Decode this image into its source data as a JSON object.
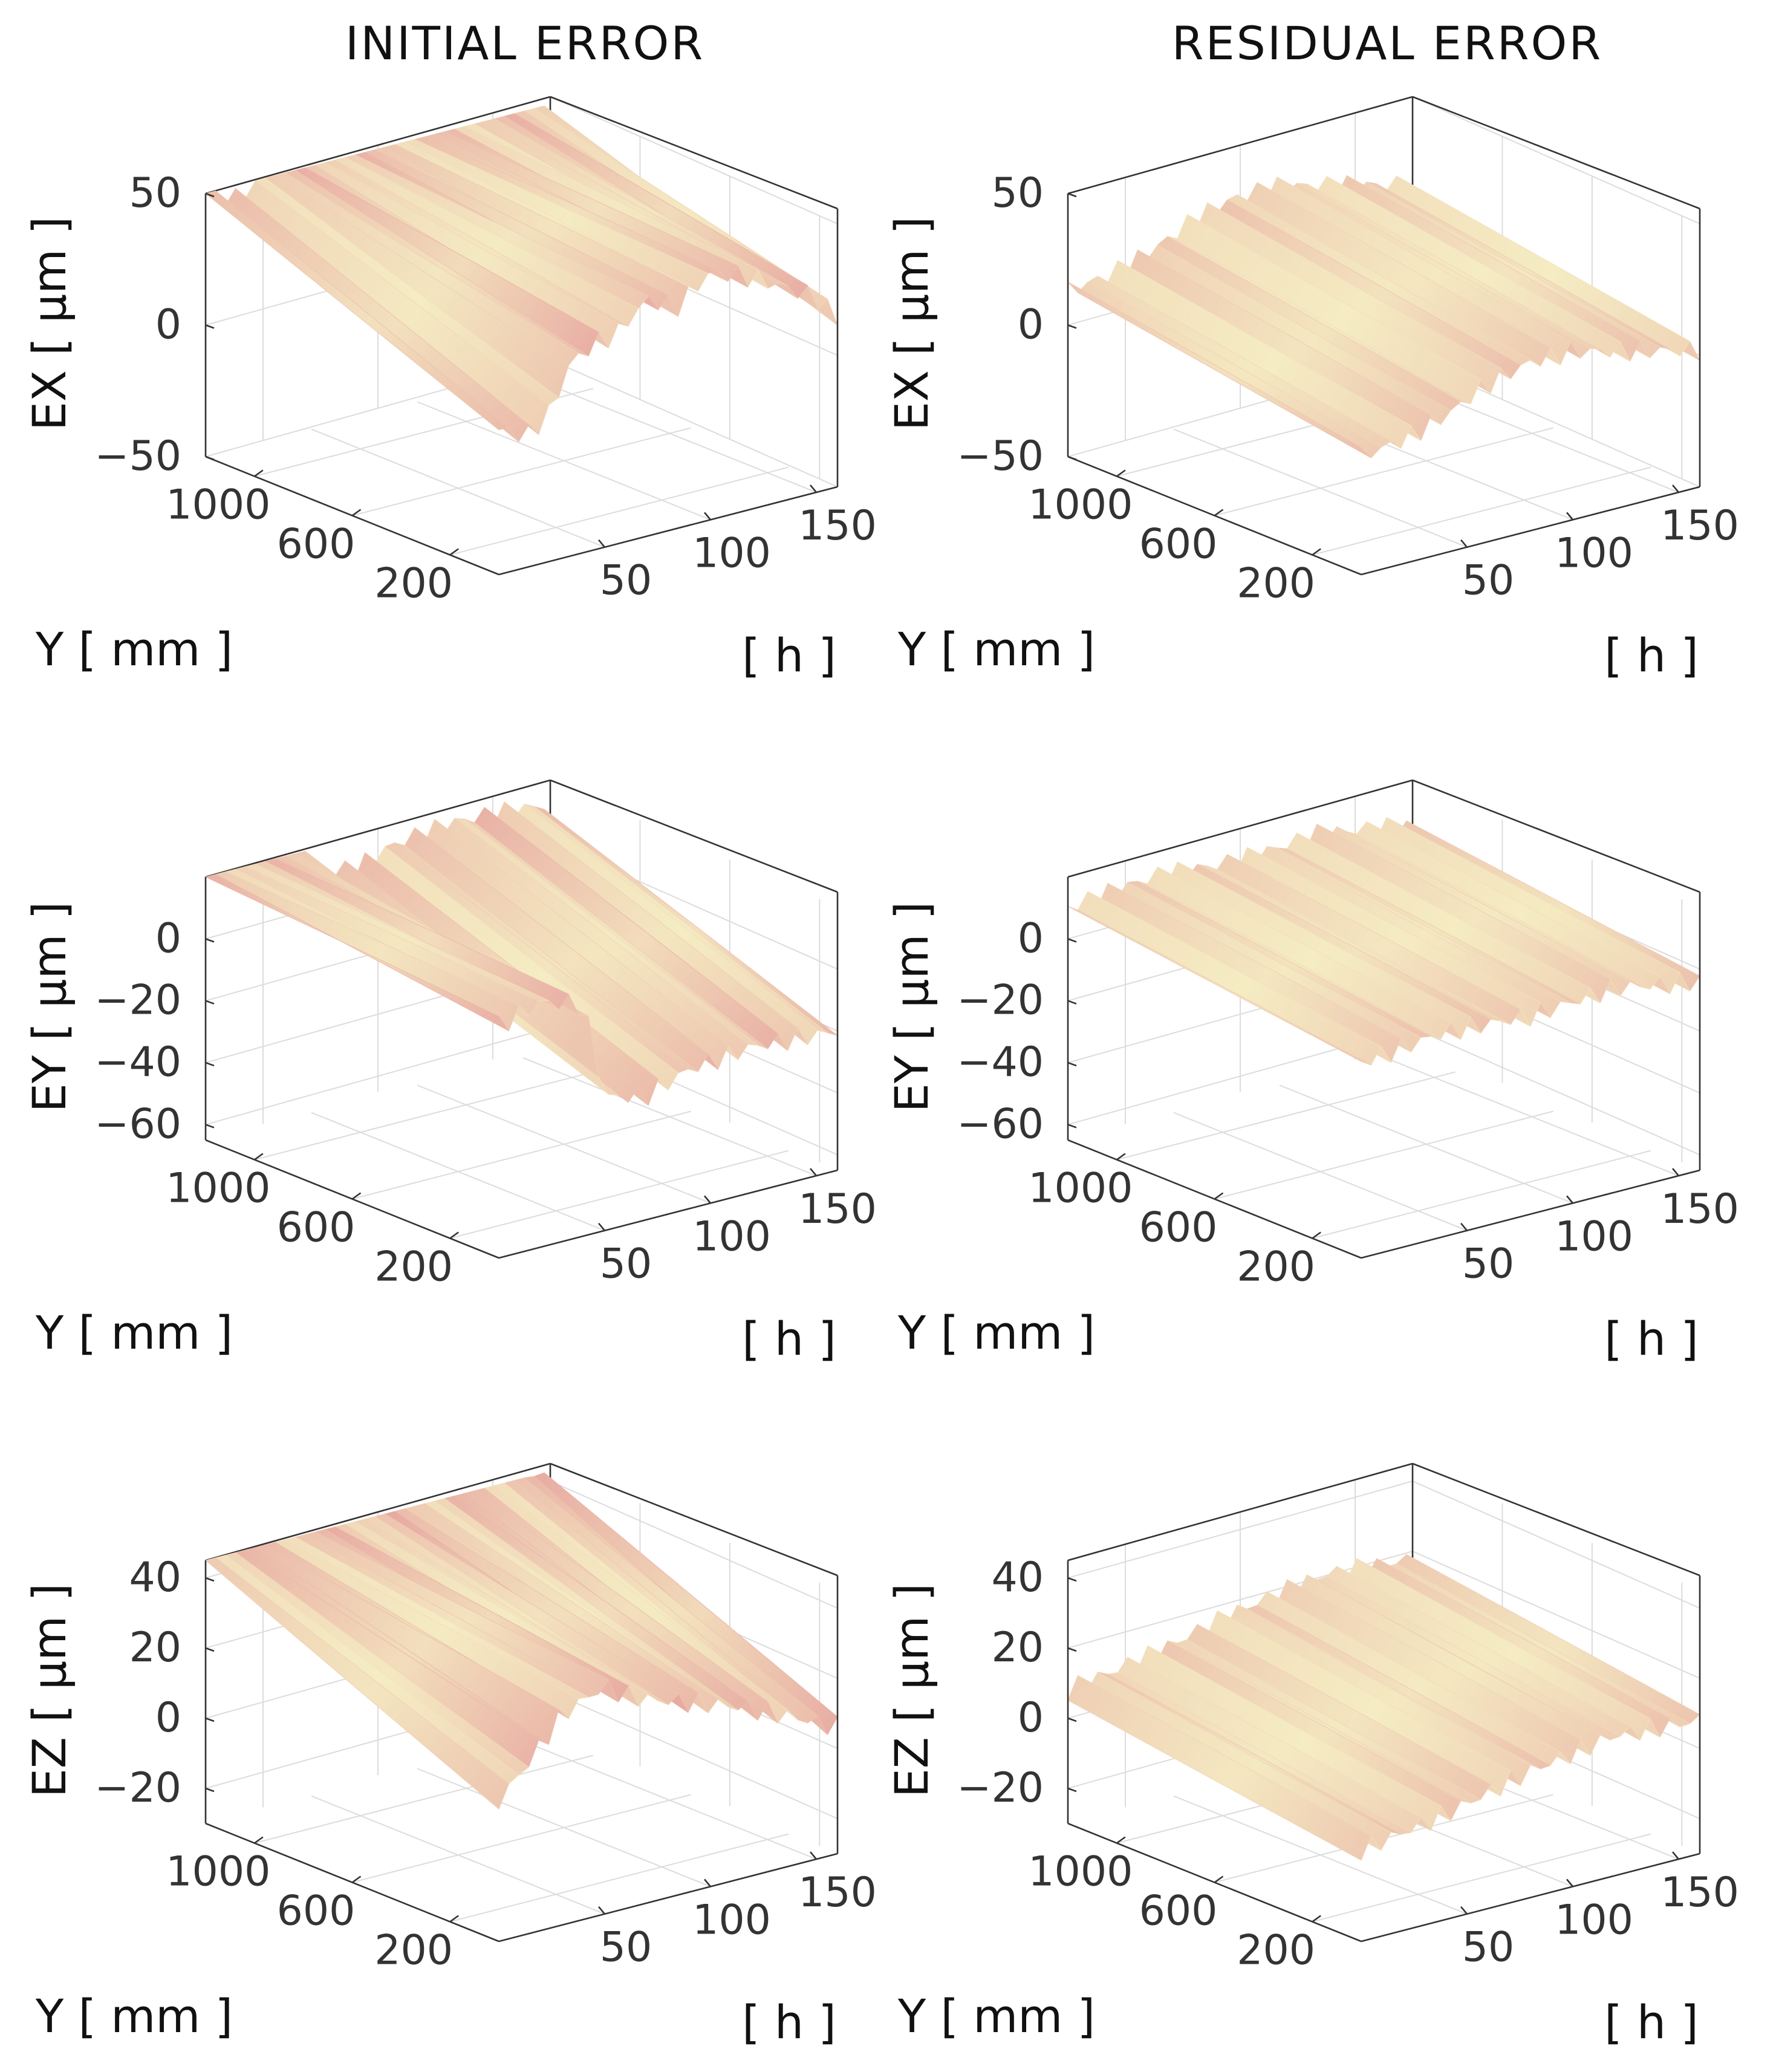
{
  "colors": {
    "surface_light": "#f6f3c6",
    "surface_mid": "#e7a6a0",
    "surface_dark": "#2d1212",
    "axis": "#333333",
    "grid": "#dcdcdc"
  },
  "chart_data": [
    {
      "type": "surface3d",
      "column_title": "INITIAL ERROR",
      "zlabel": "EX [ µm ]",
      "ylabel": "Y [ mm ]",
      "xlabel": "[ h ]",
      "zlim": [
        -50,
        50
      ],
      "zticks": [
        "50",
        "0",
        "−50"
      ],
      "ztick_values": [
        50,
        0,
        -50
      ],
      "yticks": [
        "1000",
        "600",
        "200"
      ],
      "ytick_values": [
        1000,
        600,
        200
      ],
      "ylim": [
        0,
        1200
      ],
      "xticks": [
        "50",
        "100",
        "150"
      ],
      "xtick_values": [
        50,
        100,
        150
      ],
      "xlim": [
        0,
        160
      ],
      "profile_by_time": [
        [
          0,
          5
        ],
        [
          14,
          0
        ],
        [
          26,
          8
        ],
        [
          32,
          22
        ],
        [
          44,
          28
        ],
        [
          56,
          30
        ],
        [
          70,
          40
        ],
        [
          84,
          34
        ],
        [
          100,
          44
        ],
        [
          120,
          38
        ],
        [
          150,
          24
        ],
        [
          160,
          14
        ]
      ],
      "slope_along_y": 45
    },
    {
      "type": "surface3d",
      "column_title": "RESIDUAL ERROR",
      "zlabel": "EX [ µm ]",
      "ylabel": "Y [ mm ]",
      "xlabel": "[ h ]",
      "zlim": [
        -50,
        50
      ],
      "zticks": [
        "50",
        "0",
        "−50"
      ],
      "ztick_values": [
        50,
        0,
        -50
      ],
      "yticks": [
        "1000",
        "600",
        "200"
      ],
      "ytick_values": [
        1000,
        600,
        200
      ],
      "ylim": [
        0,
        1200
      ],
      "xticks": [
        "50",
        "100",
        "150"
      ],
      "xtick_values": [
        50,
        100,
        150
      ],
      "xlim": [
        0,
        160
      ],
      "profile_by_time": [
        [
          0,
          -5
        ],
        [
          20,
          -3
        ],
        [
          40,
          2
        ],
        [
          60,
          10
        ],
        [
          80,
          14
        ],
        [
          100,
          14
        ],
        [
          120,
          10
        ],
        [
          140,
          6
        ],
        [
          160,
          2
        ]
      ],
      "slope_along_y": 18
    },
    {
      "type": "surface3d",
      "zlabel": "EY [ µm ]",
      "ylabel": "Y [ mm ]",
      "xlabel": "[ h ]",
      "zlim": [
        -65,
        20
      ],
      "zticks": [
        "0",
        "−20",
        "−40",
        "−60"
      ],
      "ztick_values": [
        0,
        -20,
        -40,
        -60
      ],
      "yticks": [
        "1000",
        "600",
        "200"
      ],
      "ytick_values": [
        1000,
        600,
        200
      ],
      "ylim": [
        0,
        1200
      ],
      "xticks": [
        "50",
        "100",
        "150"
      ],
      "xtick_values": [
        50,
        100,
        150
      ],
      "xlim": [
        0,
        160
      ],
      "profile_by_time": [
        [
          0,
          10
        ],
        [
          20,
          14
        ],
        [
          40,
          10
        ],
        [
          50,
          -22
        ],
        [
          70,
          -25
        ],
        [
          90,
          -20
        ],
        [
          120,
          -18
        ],
        [
          160,
          -20
        ]
      ],
      "slope_along_y": 35
    },
    {
      "type": "surface3d",
      "zlabel": "EY [ µm ]",
      "ylabel": "Y [ mm ]",
      "xlabel": "[ h ]",
      "zlim": [
        -65,
        20
      ],
      "zticks": [
        "0",
        "−20",
        "−40",
        "−60"
      ],
      "ztick_values": [
        0,
        -20,
        -40,
        -60
      ],
      "yticks": [
        "1000",
        "600",
        "200"
      ],
      "ytick_values": [
        1000,
        600,
        200
      ],
      "ylim": [
        0,
        1200
      ],
      "xticks": [
        "50",
        "100",
        "150"
      ],
      "xtick_values": [
        50,
        100,
        150
      ],
      "xlim": [
        0,
        160
      ],
      "profile_by_time": [
        [
          0,
          -2
        ],
        [
          40,
          1
        ],
        [
          80,
          -1
        ],
        [
          120,
          1
        ],
        [
          160,
          -4
        ]
      ],
      "slope_along_y": 12
    },
    {
      "type": "surface3d",
      "zlabel": "EZ [ µm ]",
      "ylabel": "Y [ mm ]",
      "xlabel": "[ h ]",
      "zlim": [
        -30,
        45
      ],
      "zticks": [
        "40",
        "20",
        "0",
        "−20"
      ],
      "ztick_values": [
        40,
        20,
        0,
        -20
      ],
      "yticks": [
        "1000",
        "600",
        "200"
      ],
      "ytick_values": [
        1000,
        600,
        200
      ],
      "ylim": [
        0,
        1200
      ],
      "xticks": [
        "50",
        "100",
        "150"
      ],
      "xtick_values": [
        50,
        100,
        150
      ],
      "xlim": [
        0,
        160
      ],
      "profile_by_time": [
        [
          0,
          10
        ],
        [
          16,
          20
        ],
        [
          30,
          30
        ],
        [
          50,
          35
        ],
        [
          62,
          30
        ],
        [
          80,
          26
        ],
        [
          110,
          20
        ],
        [
          140,
          12
        ],
        [
          160,
          6
        ]
      ],
      "slope_along_y": 40
    },
    {
      "type": "surface3d",
      "zlabel": "EZ [ µm ]",
      "ylabel": "Y [ mm ]",
      "xlabel": "[ h ]",
      "zlim": [
        -30,
        45
      ],
      "zticks": [
        "40",
        "20",
        "0",
        "−20"
      ],
      "ztick_values": [
        40,
        20,
        0,
        -20
      ],
      "yticks": [
        "1000",
        "600",
        "200"
      ],
      "ytick_values": [
        1000,
        600,
        200
      ],
      "ylim": [
        0,
        1200
      ],
      "xticks": [
        "50",
        "100",
        "150"
      ],
      "xtick_values": [
        50,
        100,
        150
      ],
      "xlim": [
        0,
        160
      ],
      "profile_by_time": [
        [
          0,
          -4
        ],
        [
          40,
          0
        ],
        [
          80,
          6
        ],
        [
          120,
          10
        ],
        [
          160,
          8
        ]
      ],
      "slope_along_y": 12
    }
  ]
}
